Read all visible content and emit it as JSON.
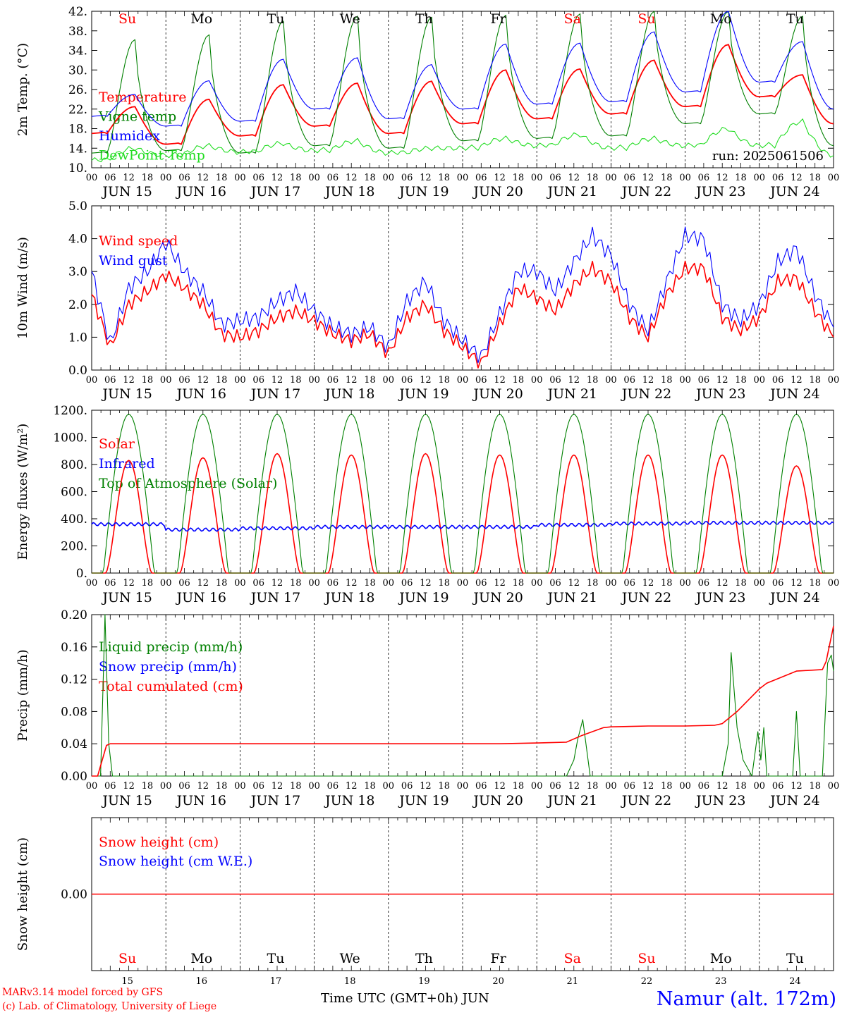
{
  "run_label": "run: 2025061506",
  "footer": {
    "model": "MARv3.14 model forced by GFS",
    "credit": "(c) Lab. of Climatology, University of Liege",
    "time_axis": "Time UTC (GMT+0h) JUN",
    "station": "Namur (alt. 172m)"
  },
  "colors": {
    "red": "#ff0000",
    "green": "#008000",
    "lightgreen": "#22dd22",
    "blue": "#0000ff",
    "black": "#000000"
  },
  "axis": {
    "dates": [
      "JUN 15",
      "JUN 16",
      "JUN 17",
      "JUN 18",
      "JUN 19",
      "JUN 20",
      "JUN 21",
      "JUN 22",
      "JUN 23",
      "JUN 24"
    ],
    "hour_ticks": [
      "00",
      "06",
      "12",
      "18"
    ],
    "final_tick": "00",
    "weekdays": [
      "Su",
      "Mo",
      "Tu",
      "We",
      "Th",
      "Fr",
      "Sa",
      "Su",
      "Mo",
      "Tu"
    ],
    "weekday_colors": [
      "red",
      "black",
      "black",
      "black",
      "black",
      "black",
      "red",
      "red",
      "black",
      "black"
    ],
    "day_numbers": [
      "15",
      "16",
      "17",
      "18",
      "19",
      "20",
      "21",
      "22",
      "23",
      "24"
    ]
  },
  "chart_data": [
    {
      "id": "temp",
      "type": "line",
      "ylabel": "2m Temp. (°C)",
      "ylim": [
        10,
        42
      ],
      "yticks": [
        "10.",
        "14.",
        "18.",
        "22.",
        "26.",
        "30.",
        "34.",
        "38.",
        "42."
      ],
      "legend": [
        {
          "text": "Temperature",
          "color": "red"
        },
        {
          "text": "Vigne temp",
          "color": "green"
        },
        {
          "text": "Humidex",
          "color": "blue"
        },
        {
          "text": "DewPoint Temp",
          "color": "lightgreen"
        }
      ],
      "series": [
        {
          "name": "Temperature",
          "color": "red",
          "daily_min": [
            17.0,
            14.8,
            16.5,
            18.5,
            17.0,
            19.0,
            20.0,
            21.0,
            22.5,
            24.5
          ],
          "daily_max": [
            22.5,
            24.0,
            27.0,
            27.3,
            27.7,
            30.0,
            30.2,
            32.0,
            35.2,
            29.0
          ],
          "end": 19.0
        },
        {
          "name": "Vigne temp",
          "color": "green",
          "daily_min": [
            13.0,
            13.5,
            13.0,
            14.5,
            14.0,
            15.5,
            16.0,
            16.5,
            19.0,
            21.0
          ],
          "daily_max": [
            36.2,
            37.2,
            40.0,
            41.0,
            40.8,
            41.2,
            41.5,
            42.0,
            42.0,
            41.0
          ],
          "end": 14.5
        },
        {
          "name": "Humidex",
          "color": "blue",
          "daily_min": [
            20.5,
            18.5,
            19.5,
            22.0,
            20.0,
            22.0,
            23.0,
            23.5,
            25.5,
            27.5
          ],
          "daily_max": [
            25.0,
            27.8,
            32.2,
            32.5,
            31.1,
            35.3,
            35.5,
            37.8,
            42.0,
            35.8
          ],
          "end": 22.0
        },
        {
          "name": "DewPoint Temp",
          "color": "lightgreen",
          "daily_min": [
            11.5,
            12.5,
            13.2,
            13.5,
            13.0,
            14.0,
            14.5,
            14.0,
            14.5,
            14.5
          ],
          "daily_max": [
            14.0,
            14.5,
            15.0,
            15.5,
            14.0,
            16.0,
            16.8,
            16.0,
            18.0,
            19.5
          ],
          "end": 12.5
        }
      ]
    },
    {
      "id": "wind",
      "type": "line",
      "ylabel": "10m Wind (m/s)",
      "ylim": [
        0,
        5
      ],
      "yticks": [
        "0.0",
        "1.0",
        "2.0",
        "3.0",
        "4.0",
        "5.0"
      ],
      "legend": [
        {
          "text": "Wind speed",
          "color": "red"
        },
        {
          "text": "Wind gust",
          "color": "blue"
        }
      ],
      "series": [
        {
          "name": "Wind speed",
          "color": "red",
          "x": [
            0,
            1,
            2,
            3,
            4,
            5,
            6,
            7,
            8,
            9,
            10,
            11,
            12,
            13,
            14,
            15,
            16,
            17,
            18,
            19,
            20,
            21,
            22,
            23,
            24,
            25,
            26,
            27,
            28,
            29,
            30,
            31,
            32,
            33,
            34,
            35,
            36,
            37,
            38,
            39,
            40
          ],
          "y": [
            2.3,
            0.7,
            2.0,
            2.4,
            2.9,
            2.5,
            2.0,
            1.1,
            1.0,
            1.2,
            1.6,
            1.8,
            1.5,
            1.1,
            0.9,
            1.1,
            0.5,
            1.6,
            2.0,
            1.2,
            0.7,
            0.2,
            1.4,
            2.5,
            2.2,
            1.8,
            2.6,
            3.1,
            2.7,
            1.6,
            1.0,
            2.3,
            3.1,
            3.1,
            1.6,
            1.2,
            1.6,
            2.7,
            2.8,
            1.8,
            1.0
          ]
        },
        {
          "name": "Wind gust",
          "color": "blue",
          "x": [
            0,
            1,
            2,
            3,
            4,
            5,
            6,
            7,
            8,
            9,
            10,
            11,
            12,
            13,
            14,
            15,
            16,
            17,
            18,
            19,
            20,
            21,
            22,
            23,
            24,
            25,
            26,
            27,
            28,
            29,
            30,
            31,
            32,
            33,
            34,
            35,
            36,
            37,
            38,
            39,
            40
          ],
          "y": [
            3.0,
            0.8,
            2.5,
            3.0,
            3.9,
            3.0,
            2.4,
            1.4,
            1.5,
            1.6,
            2.1,
            2.4,
            1.8,
            1.3,
            1.1,
            1.3,
            0.7,
            2.1,
            2.7,
            1.5,
            0.9,
            0.4,
            1.7,
            3.0,
            3.0,
            2.4,
            3.3,
            4.1,
            3.5,
            2.0,
            1.2,
            2.7,
            4.1,
            4.0,
            2.0,
            1.5,
            2.0,
            3.3,
            3.7,
            2.3,
            1.3
          ]
        }
      ]
    },
    {
      "id": "energy",
      "type": "line",
      "ylabel": "Energy fluxes (W/m²)",
      "ylim": [
        0,
        1200
      ],
      "yticks": [
        "0.",
        "200.",
        "400.",
        "600.",
        "800.",
        "1000.",
        "1200."
      ],
      "legend": [
        {
          "text": "Solar",
          "color": "red"
        },
        {
          "text": "Infrared",
          "color": "blue"
        },
        {
          "text": "Top of Atmosphere (Solar)",
          "color": "green"
        }
      ],
      "series": [
        {
          "name": "Solar",
          "color": "red",
          "daily_peak": [
            830,
            850,
            880,
            870,
            880,
            870,
            870,
            870,
            870,
            790
          ]
        },
        {
          "name": "Infrared",
          "color": "blue",
          "daily_level": [
            360,
            320,
            330,
            340,
            340,
            340,
            355,
            365,
            370,
            370
          ]
        },
        {
          "name": "Top of Atmosphere (Solar)",
          "color": "green",
          "daily_peak": [
            1170,
            1170,
            1170,
            1170,
            1170,
            1170,
            1170,
            1170,
            1170,
            1170
          ]
        }
      ]
    },
    {
      "id": "precip",
      "type": "line",
      "ylabel": "Precip (mm/h)",
      "ylim": [
        0,
        0.2
      ],
      "yticks": [
        "0.00",
        "0.04",
        "0.08",
        "0.12",
        "0.16",
        "0.20"
      ],
      "legend": [
        {
          "text": "Liquid precip (mm/h)",
          "color": "green"
        },
        {
          "text": "Snow precip (mm/h)",
          "color": "blue"
        },
        {
          "text": "Total cumulated (cm)",
          "color": "red"
        }
      ],
      "series": [
        {
          "name": "Total cumulated (cm)",
          "color": "red",
          "x": [
            0,
            0.08,
            0.2,
            0.25,
            5.5,
            6.0,
            6.4,
            6.6,
            6.9,
            7.0,
            7.5,
            8.0,
            8.4,
            8.5,
            8.7,
            9.0,
            9.1,
            9.5,
            9.85,
            9.9,
            10.0
          ],
          "y": [
            0,
            0,
            0.038,
            0.04,
            0.04,
            0.041,
            0.042,
            0.05,
            0.06,
            0.061,
            0.062,
            0.062,
            0.063,
            0.065,
            0.08,
            0.108,
            0.115,
            0.13,
            0.132,
            0.142,
            0.186
          ]
        },
        {
          "name": "Liquid precip (mm/h)",
          "color": "green",
          "x": [
            0,
            0.12,
            0.18,
            0.23,
            0.28,
            6.4,
            6.5,
            6.55,
            6.62,
            6.72,
            8.5,
            8.58,
            8.62,
            8.7,
            8.78,
            8.9,
            8.98,
            9.02,
            9.06,
            9.1,
            9.45,
            9.5,
            9.55,
            9.85,
            9.92,
            9.97,
            10.0
          ],
          "y": [
            0,
            0,
            0.2,
            0.04,
            0,
            0,
            0.02,
            0.045,
            0.07,
            0,
            0,
            0.04,
            0.153,
            0.06,
            0.02,
            0,
            0.055,
            0.02,
            0.06,
            0,
            0,
            0.08,
            0,
            0,
            0.14,
            0.15,
            0.13
          ]
        }
      ]
    },
    {
      "id": "snow",
      "type": "line",
      "ylabel": "Snow height (cm)",
      "ylim": [
        -0.5,
        0.5
      ],
      "yticks": [
        "0.00"
      ],
      "legend": [
        {
          "text": "Snow height (cm)",
          "color": "red"
        },
        {
          "text": "Snow height (cm W.E.)",
          "color": "blue"
        }
      ],
      "series": [
        {
          "name": "Snow height (cm)",
          "color": "red",
          "x": [
            0,
            10
          ],
          "y": [
            0,
            0
          ]
        }
      ]
    }
  ]
}
